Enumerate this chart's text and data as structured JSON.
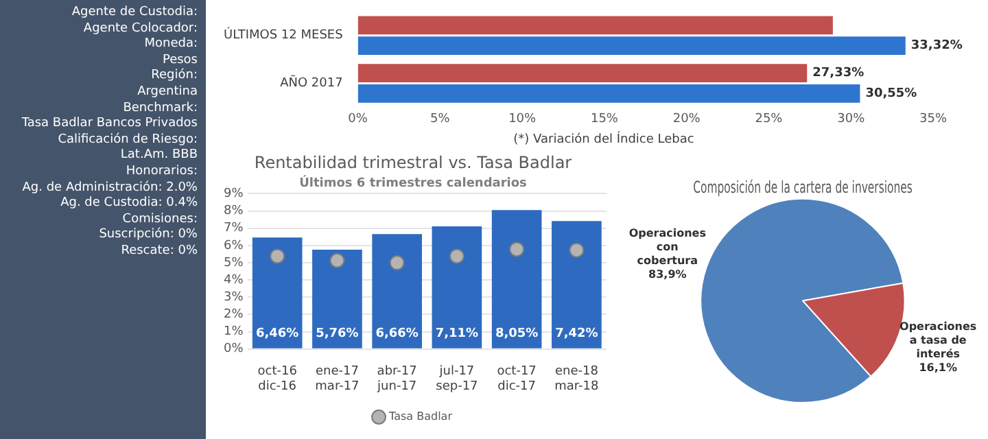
{
  "chart_data": [
    {
      "type": "other",
      "annotations": [
        "Agente de Custodia:",
        "Agente Colocador:",
        "Moneda:",
        "Pesos",
        "Región:",
        "Argentina",
        "Benchmark:",
        "Tasa Badlar Bancos Privados",
        "Calificación de Riesgo:",
        "Lat.Am. BBB",
        "Honorarios:",
        "Ag. de Administración: 2.0%",
        "Ag. de Custodia: 0.4%",
        "Comisiones:",
        "Suscripción: 0%",
        "Rescate: 0%"
      ]
    },
    {
      "type": "bar",
      "orientation": "horizontal",
      "categories": [
        "ÚLTIMOS 12 MESES",
        "AÑO 2017"
      ],
      "series": [
        {
          "color": "#c0504d",
          "values": [
            28.9,
            27.33
          ],
          "value_labels": [
            null,
            "27,33%"
          ]
        },
        {
          "color": "#2e75d0",
          "values": [
            33.32,
            30.55
          ],
          "value_labels": [
            "33,32%",
            "30,55%"
          ]
        }
      ],
      "xlim": [
        0,
        35
      ],
      "xticks": [
        {
          "value": 0,
          "label": "0%"
        },
        {
          "value": 5,
          "label": "5%"
        },
        {
          "value": 10,
          "label": "10%"
        },
        {
          "value": 15,
          "label": "15%"
        },
        {
          "value": 20,
          "label": "20%"
        },
        {
          "value": 25,
          "label": "25%"
        },
        {
          "value": 30,
          "label": "30%"
        },
        {
          "value": 35,
          "label": "35%"
        }
      ],
      "annotations": [
        "(*) Variación del Índice Lebac"
      ]
    },
    {
      "type": "bar",
      "title": "Rentabilidad trimestral vs. Tasa Badlar",
      "subtitle": "Últimos 6 trimestres calendarios",
      "categories": [
        "oct-16\ndic-16",
        "ene-17\nmar-17",
        "abr-17\njun-17",
        "jul-17\nsep-17",
        "oct-17\ndic-17",
        "ene-18\nmar-18"
      ],
      "series": [
        {
          "color": "#2e6bc0",
          "values": [
            6.46,
            5.76,
            6.66,
            7.11,
            8.05,
            7.42
          ],
          "value_labels": [
            "6,46%",
            "5,76%",
            "6,66%",
            "7,11%",
            "8,05%",
            "7,42%"
          ]
        },
        {
          "type": "scatter",
          "name": "Tasa Badlar",
          "color": "#b4b4b4",
          "values": [
            5.38,
            5.13,
            5.0,
            5.38,
            5.78,
            5.73
          ]
        }
      ],
      "ylim": [
        0,
        9
      ],
      "yticks": [
        {
          "value": 0,
          "label": "0%"
        },
        {
          "value": 1,
          "label": "1%"
        },
        {
          "value": 2,
          "label": "2%"
        },
        {
          "value": 3,
          "label": "3%"
        },
        {
          "value": 4,
          "label": "4%"
        },
        {
          "value": 5,
          "label": "5%"
        },
        {
          "value": 6,
          "label": "6%"
        },
        {
          "value": 7,
          "label": "7%"
        },
        {
          "value": 8,
          "label": "8%"
        },
        {
          "value": 9,
          "label": "9%"
        }
      ],
      "grid": "y",
      "legend": "bottom",
      "marker": "circle"
    },
    {
      "type": "pie",
      "title": "Composición de la cartera de inversiones",
      "categories": [
        "Operaciones con cobertura",
        "Operaciones a tasa de interés"
      ],
      "values": [
        83.9,
        16.1
      ],
      "colors": [
        "#4f81bd",
        "#c0504d"
      ],
      "value_labels": [
        "83,9%",
        "16,1%"
      ]
    }
  ]
}
